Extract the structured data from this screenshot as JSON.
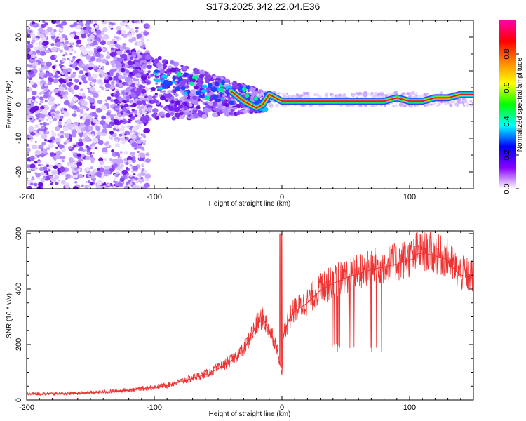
{
  "title": "S173.2025.342.22.04.E36",
  "colors": {
    "snr_line": "#ee3333",
    "axis": "#000000",
    "signal_ridge": "#dd2222"
  },
  "chart_data": [
    {
      "type": "heatmap",
      "name": "spectrogram",
      "xlabel": "Height of straight line (km)",
      "ylabel": "Frequency (Hz)",
      "xlim": [
        -200,
        150
      ],
      "ylim": [
        -25,
        25
      ],
      "xticks": [
        -200,
        -100,
        0,
        100
      ],
      "yticks": [
        -20,
        -10,
        0,
        10,
        20
      ],
      "colorbar": {
        "label": "Normalized spectral amplitude",
        "range": [
          0,
          1
        ],
        "ticks": [
          0,
          0.2,
          0.4,
          0.6,
          0.8
        ],
        "tick_labels": [
          "0.0",
          "0.2",
          "0.4",
          "0.6",
          "0.8"
        ],
        "colormap": [
          "#ffffff",
          "#8800ff",
          "#0000ff",
          "#00ffff",
          "#00ff00",
          "#ffff00",
          "#ff8800",
          "#ff0000",
          "#ff00aa"
        ]
      },
      "ridge": {
        "x": [
          -40,
          -30,
          -20,
          -15,
          -10,
          -5,
          0,
          20,
          40,
          60,
          70,
          80,
          90,
          100,
          110,
          120,
          130,
          140,
          150
        ],
        "frequency": [
          4,
          1,
          -1,
          0,
          3,
          2,
          1,
          1,
          1,
          1,
          1,
          1,
          2,
          1,
          1,
          2,
          2,
          3,
          3
        ]
      }
    },
    {
      "type": "line",
      "name": "snr",
      "xlabel": "Height of straight line (km)",
      "ylabel": "SNR (10 * v/v)",
      "xlim": [
        -200,
        150
      ],
      "ylim": [
        0,
        610
      ],
      "xticks": [
        -200,
        -100,
        0,
        100
      ],
      "yticks": [
        0,
        200,
        400,
        600
      ],
      "x": [
        -200,
        -180,
        -160,
        -140,
        -120,
        -100,
        -90,
        -80,
        -70,
        -60,
        -50,
        -40,
        -30,
        -25,
        -20,
        -15,
        -10,
        -5,
        -1,
        0,
        1,
        5,
        10,
        20,
        30,
        40,
        50,
        60,
        70,
        80,
        90,
        100,
        104,
        105,
        110,
        120,
        130,
        135,
        140,
        150
      ],
      "values": [
        22,
        22,
        24,
        28,
        35,
        45,
        52,
        65,
        78,
        92,
        112,
        140,
        180,
        225,
        265,
        295,
        250,
        205,
        120,
        90,
        230,
        285,
        320,
        350,
        395,
        420,
        440,
        455,
        470,
        480,
        490,
        505,
        510,
        525,
        530,
        520,
        505,
        470,
        450,
        440
      ]
    }
  ]
}
